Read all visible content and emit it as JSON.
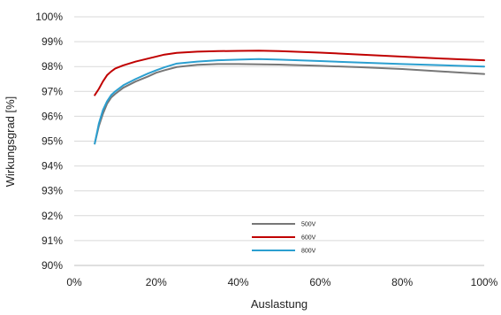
{
  "chart_data": {
    "type": "line",
    "title": "",
    "xlabel": "Auslastung",
    "ylabel": "Wirkungsgrad [%]",
    "xlim": [
      0,
      100
    ],
    "ylim": [
      90,
      100
    ],
    "x_ticks": [
      "0%",
      "20%",
      "40%",
      "60%",
      "80%",
      "100%"
    ],
    "y_ticks": [
      "90%",
      "91%",
      "92%",
      "93%",
      "94%",
      "95%",
      "96%",
      "97%",
      "98%",
      "99%",
      "100%"
    ],
    "grid": "horizontal",
    "legend_position": "bottom-center",
    "series": [
      {
        "name": "500V",
        "color": "#777777",
        "x": [
          5,
          6,
          7,
          8,
          9,
          10,
          12,
          15,
          18,
          20,
          22,
          25,
          30,
          35,
          40,
          50,
          60,
          70,
          80,
          90,
          100
        ],
        "y": [
          94.9,
          95.6,
          96.1,
          96.5,
          96.75,
          96.9,
          97.15,
          97.4,
          97.6,
          97.75,
          97.85,
          97.98,
          98.07,
          98.1,
          98.1,
          98.08,
          98.03,
          97.97,
          97.9,
          97.8,
          97.7
        ]
      },
      {
        "name": "600V",
        "color": "#c00000",
        "x": [
          5,
          6,
          7,
          8,
          9,
          10,
          12,
          15,
          18,
          20,
          22,
          25,
          30,
          35,
          40,
          45,
          50,
          60,
          70,
          80,
          90,
          100
        ],
        "y": [
          96.85,
          97.1,
          97.4,
          97.65,
          97.8,
          97.92,
          98.05,
          98.2,
          98.32,
          98.4,
          98.48,
          98.55,
          98.6,
          98.62,
          98.63,
          98.64,
          98.62,
          98.56,
          98.48,
          98.4,
          98.32,
          98.25
        ]
      },
      {
        "name": "800V",
        "color": "#2b9fd0",
        "x": [
          5,
          6,
          7,
          8,
          9,
          10,
          12,
          15,
          18,
          20,
          22,
          25,
          30,
          35,
          40,
          45,
          50,
          60,
          70,
          80,
          90,
          100
        ],
        "y": [
          94.9,
          95.7,
          96.25,
          96.6,
          96.85,
          97.0,
          97.25,
          97.5,
          97.72,
          97.85,
          97.97,
          98.12,
          98.2,
          98.25,
          98.28,
          98.3,
          98.28,
          98.22,
          98.16,
          98.1,
          98.05,
          98.0
        ]
      }
    ]
  }
}
